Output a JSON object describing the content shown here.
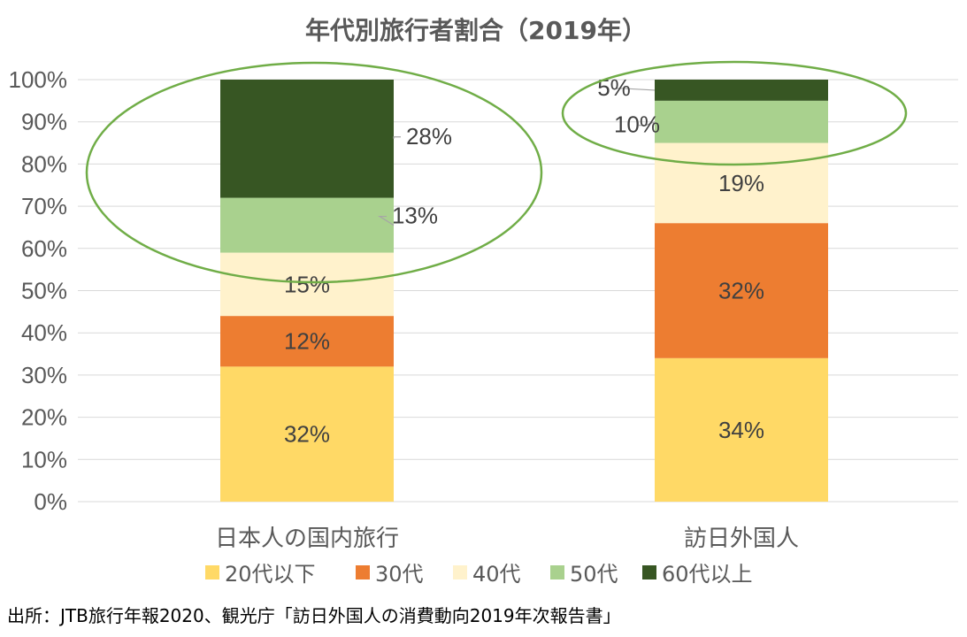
{
  "chart_data": {
    "type": "stacked-bar",
    "title": "年代別旅行者割合（2019年）",
    "categories": [
      "日本人の国内旅行",
      "訪日外国人"
    ],
    "series": [
      {
        "name": "20代以下",
        "color": "#FFD966",
        "values": [
          32,
          34
        ]
      },
      {
        "name": "30代",
        "color": "#ED7D31",
        "values": [
          12,
          32
        ]
      },
      {
        "name": "40代",
        "color": "#FFF2CC",
        "values": [
          15,
          19
        ]
      },
      {
        "name": "50代",
        "color": "#A9D18E",
        "values": [
          13,
          10
        ]
      },
      {
        "name": "60代以上",
        "color": "#375623",
        "values": [
          28,
          5
        ]
      }
    ],
    "data_labels": [
      [
        "32%",
        "12%",
        "15%",
        "13%",
        "28%"
      ],
      [
        "34%",
        "32%",
        "19%",
        "10%",
        "5%"
      ]
    ],
    "yticks": [
      "0%",
      "10%",
      "20%",
      "30%",
      "40%",
      "50%",
      "60%",
      "70%",
      "80%",
      "90%",
      "100%"
    ],
    "ylim": [
      0,
      100
    ],
    "grid": true,
    "legend_position": "bottom",
    "highlight_color": "#70AD47"
  },
  "source": "出所：JTB旅行年報2020、観光庁「訪日外国人の消費動向2019年次報告書」"
}
